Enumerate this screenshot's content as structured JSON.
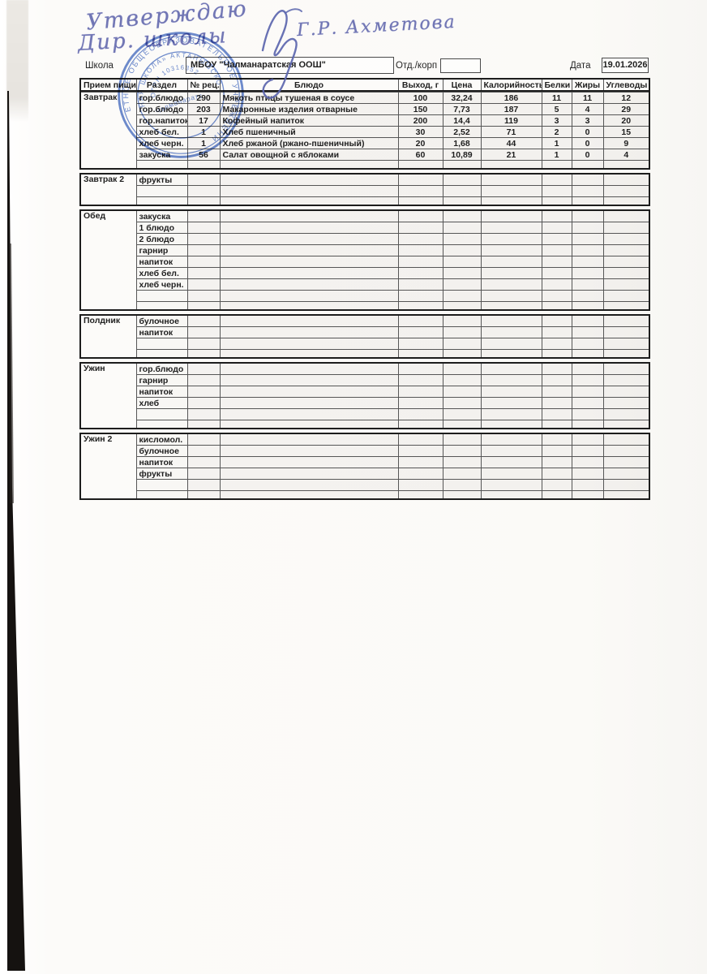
{
  "handwriting": {
    "line1": "Утверждаю",
    "line2": "Дир. школы",
    "signature_name": "Г.Р. Ахметова"
  },
  "stamp": {
    "ring_text": "ЕТНОЕ ОБЩЕОБРАЗОВАТЕЛЬНОЕ УЧРЕЖДЕНИ",
    "ring_text2": "НАЯ ШКОЛА» АКТАНЫШСКО",
    "ogrn": "ОГРН 10316352",
    "center": "Чалманаратс",
    "color": "#4a6fc4"
  },
  "form": {
    "school_label": "Школа",
    "school_value": "МБОУ \"Чалманаратская ООШ\"",
    "dept_label": "Отд./корп",
    "dept_value": "",
    "date_label": "Дата",
    "date_value": "19.01.2026"
  },
  "table": {
    "columns": [
      "Прием пищи",
      "Раздел",
      "№ рец.",
      "Блюдо",
      "Выход, г",
      "Цена",
      "Калорийность",
      "Белки",
      "Жиры",
      "Углеводы"
    ],
    "sections": [
      {
        "meal": "Завтрак",
        "rows": [
          [
            "гор.блюдо",
            "290",
            "Мякоть птицы тушеная в соусе",
            "100",
            "32,24",
            "186",
            "11",
            "11",
            "12"
          ],
          [
            "гор.блюдо",
            "203",
            "Макаронные изделия отварные",
            "150",
            "7,73",
            "187",
            "5",
            "4",
            "29"
          ],
          [
            "гор.напиток",
            "17",
            "Кофейный напиток",
            "200",
            "14,4",
            "119",
            "3",
            "3",
            "20"
          ],
          [
            "хлеб бел.",
            "1",
            "Хлеб пшеничный",
            "30",
            "2,52",
            "71",
            "2",
            "0",
            "15"
          ],
          [
            "хлеб черн.",
            "1",
            "Хлеб ржаной (ржано-пшеничный)",
            "20",
            "1,68",
            "44",
            "1",
            "0",
            "9"
          ],
          [
            "закуска",
            "56",
            "Салат овощной с яблоками",
            "60",
            "10,89",
            "21",
            "1",
            "0",
            "4"
          ],
          [
            "",
            "",
            "",
            "",
            "",
            "",
            "",
            "",
            ""
          ]
        ]
      },
      {
        "meal": "Завтрак 2",
        "rows": [
          [
            "фрукты",
            "",
            "",
            "",
            "",
            "",
            "",
            "",
            ""
          ],
          [
            "",
            "",
            "",
            "",
            "",
            "",
            "",
            "",
            ""
          ],
          [
            "",
            "",
            "",
            "",
            "",
            "",
            "",
            "",
            ""
          ]
        ]
      },
      {
        "meal": "Обед",
        "rows": [
          [
            "закуска",
            "",
            "",
            "",
            "",
            "",
            "",
            "",
            ""
          ],
          [
            "1 блюдо",
            "",
            "",
            "",
            "",
            "",
            "",
            "",
            ""
          ],
          [
            "2 блюдо",
            "",
            "",
            "",
            "",
            "",
            "",
            "",
            ""
          ],
          [
            "гарнир",
            "",
            "",
            "",
            "",
            "",
            "",
            "",
            ""
          ],
          [
            "напиток",
            "",
            "",
            "",
            "",
            "",
            "",
            "",
            ""
          ],
          [
            "хлеб бел.",
            "",
            "",
            "",
            "",
            "",
            "",
            "",
            ""
          ],
          [
            "хлеб черн.",
            "",
            "",
            "",
            "",
            "",
            "",
            "",
            ""
          ],
          [
            "",
            "",
            "",
            "",
            "",
            "",
            "",
            "",
            ""
          ],
          [
            "",
            "",
            "",
            "",
            "",
            "",
            "",
            "",
            ""
          ]
        ]
      },
      {
        "meal": "Полдник",
        "rows": [
          [
            "булочное",
            "",
            "",
            "",
            "",
            "",
            "",
            "",
            ""
          ],
          [
            "напиток",
            "",
            "",
            "",
            "",
            "",
            "",
            "",
            ""
          ],
          [
            "",
            "",
            "",
            "",
            "",
            "",
            "",
            "",
            ""
          ],
          [
            "",
            "",
            "",
            "",
            "",
            "",
            "",
            "",
            ""
          ]
        ]
      },
      {
        "meal": "Ужин",
        "rows": [
          [
            "гор.блюдо",
            "",
            "",
            "",
            "",
            "",
            "",
            "",
            ""
          ],
          [
            "гарнир",
            "",
            "",
            "",
            "",
            "",
            "",
            "",
            ""
          ],
          [
            "напиток",
            "",
            "",
            "",
            "",
            "",
            "",
            "",
            ""
          ],
          [
            "хлеб",
            "",
            "",
            "",
            "",
            "",
            "",
            "",
            ""
          ],
          [
            "",
            "",
            "",
            "",
            "",
            "",
            "",
            "",
            ""
          ],
          [
            "",
            "",
            "",
            "",
            "",
            "",
            "",
            "",
            ""
          ]
        ]
      },
      {
        "meal": "Ужин 2",
        "rows": [
          [
            "кисломол.",
            "",
            "",
            "",
            "",
            "",
            "",
            "",
            ""
          ],
          [
            "булочное",
            "",
            "",
            "",
            "",
            "",
            "",
            "",
            ""
          ],
          [
            "напиток",
            "",
            "",
            "",
            "",
            "",
            "",
            "",
            ""
          ],
          [
            "фрукты",
            "",
            "",
            "",
            "",
            "",
            "",
            "",
            ""
          ],
          [
            "",
            "",
            "",
            "",
            "",
            "",
            "",
            "",
            ""
          ],
          [
            "",
            "",
            "",
            "",
            "",
            "",
            "",
            "",
            ""
          ]
        ]
      }
    ]
  }
}
